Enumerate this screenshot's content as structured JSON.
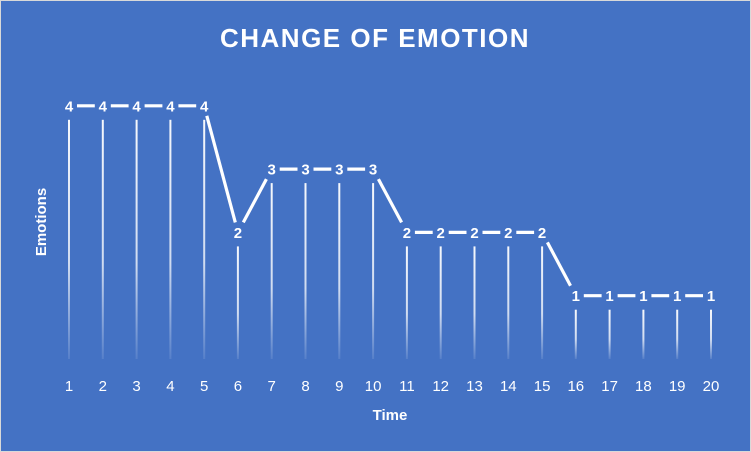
{
  "chart_data": {
    "type": "line",
    "title": "CHANGE OF EMOTION",
    "xlabel": "Time",
    "ylabel": "Emotions",
    "x": [
      "1",
      "2",
      "3",
      "4",
      "5",
      "6",
      "7",
      "8",
      "9",
      "10",
      "11",
      "12",
      "13",
      "14",
      "15",
      "16",
      "17",
      "18",
      "19",
      "20"
    ],
    "series": [
      {
        "values": [
          4,
          4,
          4,
          4,
          4,
          2,
          3,
          3,
          3,
          3,
          2,
          2,
          2,
          2,
          2,
          1,
          1,
          1,
          1,
          1
        ]
      }
    ],
    "ylim": [
      0,
      4.8
    ],
    "grid": false,
    "drop_lines": true,
    "data_labels": true,
    "legend": "none",
    "colors": {
      "background": "#4472c4",
      "line": "#ffffff",
      "text": "#ffffff"
    }
  }
}
